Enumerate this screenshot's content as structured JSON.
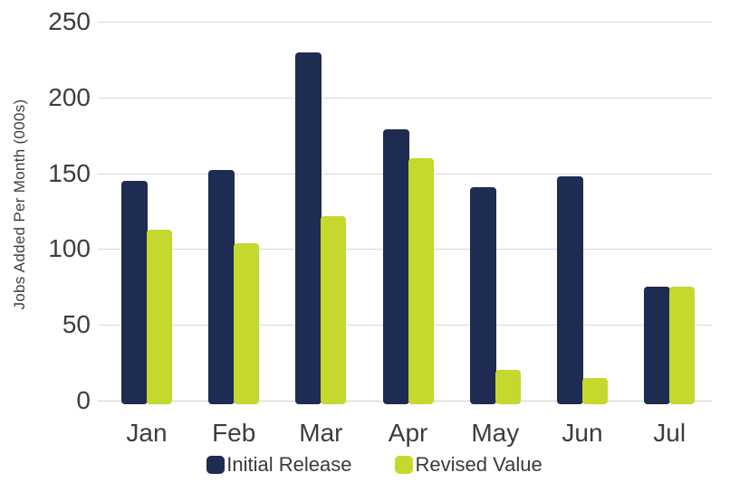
{
  "chart_data": {
    "type": "bar",
    "categories": [
      "Jan",
      "Feb",
      "Mar",
      "Apr",
      "May",
      "Jun",
      "Jul"
    ],
    "series": [
      {
        "name": "Initial Release",
        "color": "#1E2B52",
        "values": [
          145,
          152,
          230,
          179,
          141,
          148,
          75
        ]
      },
      {
        "name": "Revised Value",
        "color": "#C5D82D",
        "values": [
          113,
          104,
          122,
          160,
          20,
          15,
          75
        ]
      }
    ],
    "title": "",
    "xlabel": "",
    "ylabel": "Jobs Added Per Month (000s)",
    "ylim": [
      0,
      250
    ],
    "yticks": [
      0,
      50,
      100,
      150,
      200,
      250
    ],
    "grid": true,
    "legend_position": "bottom",
    "gridline_color": "#D9D9D9",
    "text_color": "#3D3D3D",
    "background_color": "#FFFFFF"
  }
}
